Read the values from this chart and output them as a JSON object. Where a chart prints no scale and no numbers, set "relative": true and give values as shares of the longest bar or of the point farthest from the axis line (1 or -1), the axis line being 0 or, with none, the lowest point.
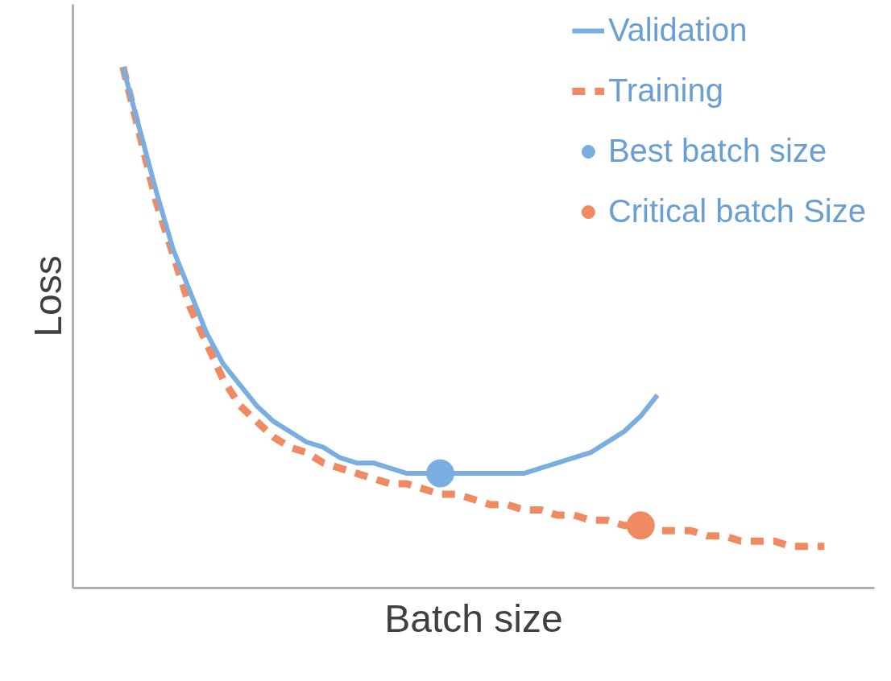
{
  "chart_data": {
    "type": "line",
    "relative": true,
    "xlabel": "Batch size",
    "ylabel": "Loss",
    "grid": false,
    "legend": "top right",
    "categories": [
      null,
      null,
      null,
      null,
      null,
      null,
      null,
      null,
      null,
      null,
      null,
      null,
      null,
      null,
      null,
      null,
      null,
      null,
      null,
      null,
      null,
      null,
      null,
      null,
      null,
      null,
      null,
      null,
      null,
      null,
      null,
      null,
      null,
      null,
      null,
      null,
      null,
      null,
      null,
      null,
      null,
      null,
      null
    ],
    "series": [
      {
        "name": "Validation",
        "color": "#7aaee0",
        "line_style": "solid",
        "values": [
          1.0,
          0.88,
          0.76,
          0.65,
          0.57,
          0.49,
          0.43,
          0.39,
          0.35,
          0.32,
          0.3,
          0.28,
          0.27,
          0.25,
          0.24,
          0.24,
          0.23,
          0.22,
          0.22,
          0.22,
          0.22,
          0.22,
          0.22,
          0.22,
          0.22,
          0.23,
          0.24,
          0.25,
          0.26,
          0.28,
          0.3,
          0.33,
          0.37,
          null,
          null,
          null,
          null,
          null,
          null,
          null,
          null,
          null,
          null
        ]
      },
      {
        "name": "Training",
        "color": "#ef8a62",
        "line_style": "dashed",
        "values": [
          1.0,
          0.87,
          0.74,
          0.64,
          0.54,
          0.47,
          0.4,
          0.35,
          0.32,
          0.29,
          0.27,
          0.26,
          0.24,
          0.23,
          0.22,
          0.21,
          0.2,
          0.2,
          0.19,
          0.18,
          0.18,
          0.17,
          0.16,
          0.16,
          0.15,
          0.15,
          0.14,
          0.14,
          0.13,
          0.13,
          0.12,
          0.12,
          0.11,
          0.11,
          0.11,
          0.1,
          0.1,
          0.09,
          0.09,
          0.09,
          0.08,
          0.08,
          0.08
        ]
      },
      {
        "name": "Best batch size",
        "type": "line",
        "marker": "circle",
        "color": "#7aaee0",
        "values": [
          null,
          null,
          null,
          null,
          null,
          null,
          null,
          null,
          null,
          null,
          null,
          null,
          null,
          null,
          null,
          null,
          null,
          null,
          null,
          0.22,
          null,
          null,
          null,
          null,
          null,
          null,
          null,
          null,
          null,
          null,
          null,
          null,
          null,
          null,
          null,
          null,
          null,
          null,
          null,
          null,
          null,
          null,
          null
        ]
      },
      {
        "name": "Critical batch Size",
        "type": "line",
        "marker": "circle",
        "color": "#ef8a62",
        "values": [
          null,
          null,
          null,
          null,
          null,
          null,
          null,
          null,
          null,
          null,
          null,
          null,
          null,
          null,
          null,
          null,
          null,
          null,
          null,
          null,
          null,
          null,
          null,
          null,
          null,
          null,
          null,
          null,
          null,
          null,
          null,
          0.12,
          null,
          null,
          null,
          null,
          null,
          null,
          null,
          null,
          null,
          null,
          null
        ]
      }
    ]
  }
}
